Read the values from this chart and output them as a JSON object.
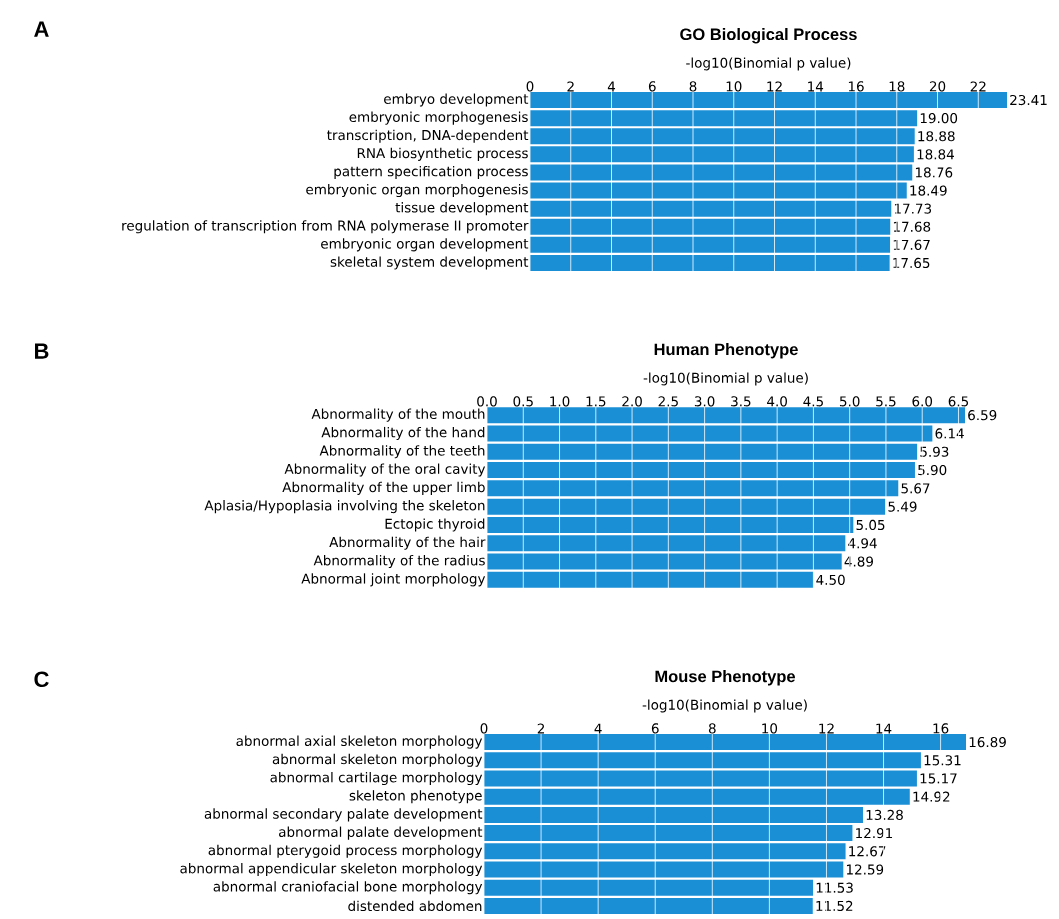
{
  "chart_data": [
    {
      "type": "bar",
      "orientation": "horizontal",
      "title": "GO Biological Process",
      "xlabel": "-log10(Binomial p value)",
      "annotations": [
        "A"
      ],
      "grid": "x",
      "color": "#1a8fd6",
      "categories": [
        "embryo development",
        "embryonic morphogenesis",
        "transcription, DNA-dependent",
        "RNA biosynthetic process",
        "pattern specification process",
        "embryonic organ morphogenesis",
        "tissue development",
        "regulation of transcription from RNA polymerase II promoter",
        "embryonic organ development",
        "skeletal system development"
      ],
      "values": [
        23.41,
        19.0,
        18.88,
        18.84,
        18.76,
        18.49,
        17.73,
        17.68,
        17.67,
        17.65
      ],
      "value_labels": [
        "23.41",
        "19.00",
        "18.88",
        "18.84",
        "18.76",
        "18.49",
        "17.73",
        "17.68",
        "17.67",
        "17.65"
      ],
      "xlim": [
        0,
        23.41
      ],
      "xticks": [
        0,
        2,
        4,
        6,
        8,
        10,
        12,
        14,
        16,
        18,
        20,
        22
      ]
    },
    {
      "type": "bar",
      "orientation": "horizontal",
      "title": "Human Phenotype",
      "xlabel": "-log10(Binomial p value)",
      "annotations": [
        "B"
      ],
      "grid": "x",
      "color": "#1a8fd6",
      "categories": [
        "Abnormality of the mouth",
        "Abnormality of the hand",
        "Abnormality of the teeth",
        "Abnormality of the oral cavity",
        "Abnormality of the upper limb",
        "Aplasia/Hypoplasia involving the skeleton",
        "Ectopic thyroid",
        "Abnormality of the hair",
        "Abnormality of the radius",
        "Abnormal joint morphology"
      ],
      "values": [
        6.59,
        6.14,
        5.93,
        5.9,
        5.67,
        5.49,
        5.05,
        4.94,
        4.89,
        4.5
      ],
      "value_labels": [
        "6.59",
        "6.14",
        "5.93",
        "5.90",
        "5.67",
        "5.49",
        "5.05",
        "4.94",
        "4.89",
        "4.50"
      ],
      "xlim": [
        0,
        6.59
      ],
      "xticks": [
        {
          "value": 0,
          "label": "0.0"
        },
        {
          "value": 0.5,
          "label": "0.5"
        },
        {
          "value": 1,
          "label": "1.0"
        },
        {
          "value": 1.5,
          "label": "1.5"
        },
        {
          "value": 2,
          "label": "2.0"
        },
        {
          "value": 2.5,
          "label": "2.5"
        },
        {
          "value": 3,
          "label": "3.0"
        },
        {
          "value": 3.5,
          "label": "3.5"
        },
        {
          "value": 4,
          "label": "4.0"
        },
        {
          "value": 4.5,
          "label": "4.5"
        },
        {
          "value": 5,
          "label": "5.0"
        },
        {
          "value": 5.5,
          "label": "5.5"
        },
        {
          "value": 6,
          "label": "6.0"
        },
        {
          "value": 6.5,
          "label": "6.5"
        }
      ]
    },
    {
      "type": "bar",
      "orientation": "horizontal",
      "title": "Mouse Phenotype",
      "xlabel": "-log10(Binomial p value)",
      "annotations": [
        "C"
      ],
      "grid": "x",
      "color": "#1a8fd6",
      "categories": [
        "abnormal axial skeleton morphology",
        "abnormal skeleton morphology",
        "abnormal cartilage morphology",
        "skeleton phenotype",
        "abnormal secondary palate development",
        "abnormal palate development",
        "abnormal pterygoid process morphology",
        "abnormal appendicular skeleton morphology",
        "abnormal craniofacial bone morphology",
        "distended abdomen"
      ],
      "values": [
        16.89,
        15.31,
        15.17,
        14.92,
        13.28,
        12.91,
        12.67,
        12.59,
        11.53,
        11.52
      ],
      "value_labels": [
        "16.89",
        "15.31",
        "15.17",
        "14.92",
        "13.28",
        "12.91",
        "12.67",
        "12.59",
        "11.53",
        "11.52"
      ],
      "xlim": [
        0,
        16.89
      ],
      "xticks": [
        0,
        2,
        4,
        6,
        8,
        10,
        12,
        14,
        16
      ]
    }
  ]
}
